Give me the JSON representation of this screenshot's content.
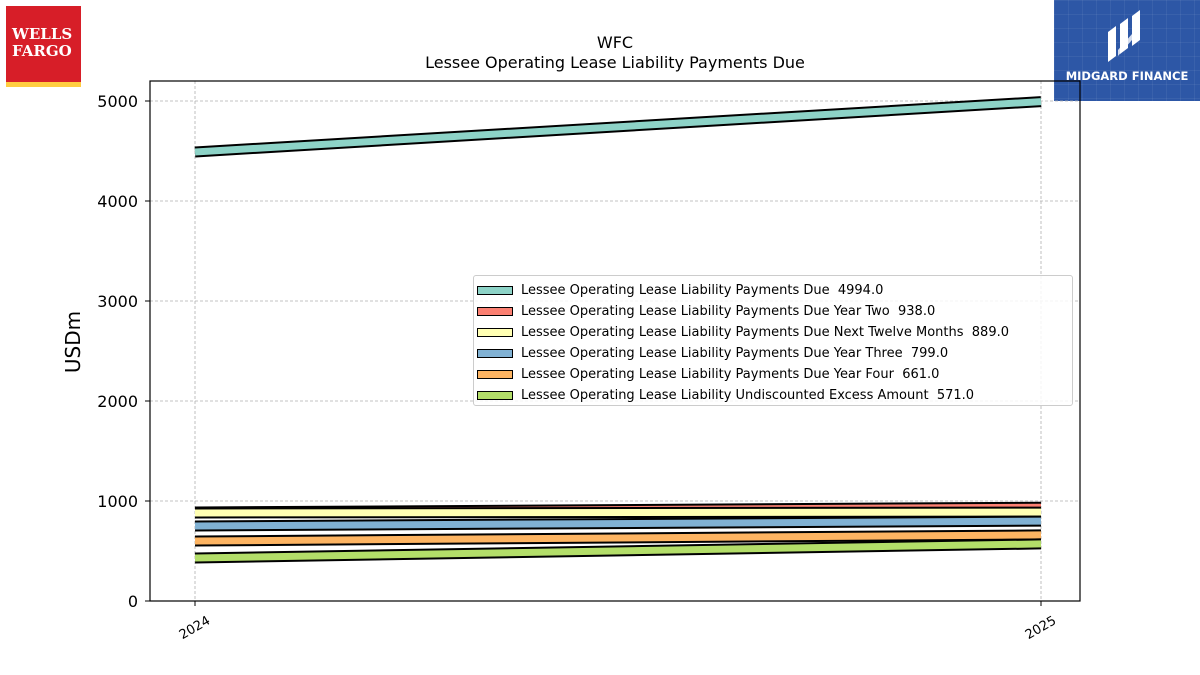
{
  "header": {
    "title": "WFC",
    "subtitle": "Lessee Operating Lease Liability Payments Due"
  },
  "logos": {
    "left": {
      "line1": "WELLS",
      "line2": "FARGO",
      "color": "#d71e28",
      "accent": "#ffcd41"
    },
    "right": {
      "text": "MIDGARD FINANCE",
      "color": "#2d57a6"
    }
  },
  "chart_data": {
    "type": "line",
    "title": "WFC\nLessee Operating Lease Liability Payments Due",
    "ylabel": "USDm",
    "xlabel": "",
    "x": [
      "2024",
      "2025"
    ],
    "ylim": [
      0,
      5200
    ],
    "yticks": [
      0,
      1000,
      2000,
      3000,
      4000,
      5000
    ],
    "grid": true,
    "legend_position": "center-right",
    "series": [
      {
        "name": "Lessee Operating Lease Liability Payments Due",
        "legend": "Lessee Operating Lease Liability Payments Due  4994.0",
        "values": [
          4490,
          4994
        ],
        "color": "#8dd3c7"
      },
      {
        "name": "Lessee Operating Lease Liability Payments Due Year Two",
        "legend": "Lessee Operating Lease Liability Payments Due Year Two  938.0",
        "values": [
          890,
          938
        ],
        "color": "#fb8072"
      },
      {
        "name": "Lessee Operating Lease Liability Payments Due Next Twelve Months",
        "legend": "Lessee Operating Lease Liability Payments Due Next Twelve Months  889.0",
        "values": [
          880,
          889
        ],
        "color": "#ffffb3"
      },
      {
        "name": "Lessee Operating Lease Liability Payments Due Year Three",
        "legend": "Lessee Operating Lease Liability Payments Due Year Three  799.0",
        "values": [
          750,
          799
        ],
        "color": "#80b1d3"
      },
      {
        "name": "Lessee Operating Lease Liability Payments Due Year Four",
        "legend": "Lessee Operating Lease Liability Payments Due Year Four  661.0",
        "values": [
          600,
          661
        ],
        "color": "#fdb462"
      },
      {
        "name": "Lessee Operating Lease Liability Undiscounted Excess Amount",
        "legend": "Lessee Operating Lease Liability Undiscounted Excess Amount  571.0",
        "values": [
          430,
          571
        ],
        "color": "#b3de69"
      }
    ]
  }
}
